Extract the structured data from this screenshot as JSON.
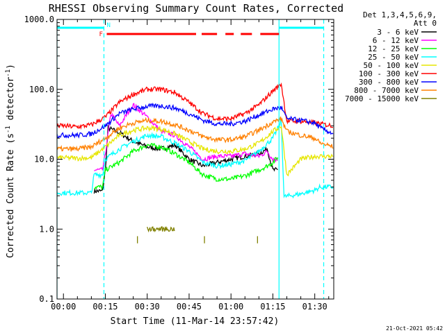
{
  "chart_data": {
    "type": "line",
    "title": "RHESSI Observing Summary Count Rates, Corrected",
    "xlabel": "Start Time (11-Mar-14 23:57:42)",
    "ylabel_main": "Corrected Count Rate (s",
    "ylabel_sup": "-1",
    "ylabel_mid": " detector",
    "ylabel_sup2": "-1",
    "ylabel_end": ")",
    "yscale": "log",
    "ylim": [
      0.1,
      1000
    ],
    "yticks": [
      {
        "value": 0.1,
        "label": "0.1"
      },
      {
        "value": 1,
        "label": "1.0"
      },
      {
        "value": 10,
        "label": "10.0"
      },
      {
        "value": 100,
        "label": "100.0"
      },
      {
        "value": 1000,
        "label": "1000.0"
      }
    ],
    "xlim_minutes": [
      -2.3,
      96.8
    ],
    "xticks": [
      {
        "value": 0,
        "label": "00:00"
      },
      {
        "value": 15,
        "label": "00:15"
      },
      {
        "value": 30,
        "label": "00:30"
      },
      {
        "value": 45,
        "label": "00:45"
      },
      {
        "value": 60,
        "label": "01:00"
      },
      {
        "value": 75,
        "label": "01:15"
      },
      {
        "value": 90,
        "label": "01:30"
      }
    ],
    "legend_header": [
      "Det 1,3,4,5,6,9,",
      "Att 0"
    ],
    "series": [
      {
        "name": "3 - 6 keV",
        "color": "#000000",
        "x": [
          -2.3,
          10.5,
          11,
          14,
          15,
          16,
          20,
          25,
          30,
          35,
          40,
          45,
          50,
          55,
          60,
          65,
          70,
          73,
          75,
          77,
          77.5
        ],
        "y": [
          null,
          null,
          3.5,
          3.5,
          7,
          28,
          24,
          18,
          15,
          14,
          16,
          10,
          8,
          9,
          10,
          11,
          12,
          14,
          7,
          7,
          null
        ]
      },
      {
        "name": "6 - 12 keV",
        "color": "#ff00ff",
        "x": [
          -2.3,
          10.5,
          11,
          14,
          15,
          17,
          20,
          25,
          30,
          35,
          40,
          45,
          50,
          55,
          60,
          65,
          70,
          73,
          75,
          77,
          77.5
        ],
        "y": [
          null,
          null,
          7,
          7,
          12,
          45,
          30,
          60,
          40,
          25,
          22,
          15,
          10,
          11,
          11,
          12,
          11,
          13,
          10,
          10,
          null
        ]
      },
      {
        "name": "12 - 25 keV",
        "color": "#00ff00",
        "x": [
          -2.3,
          10.5,
          11,
          14,
          15,
          20,
          25,
          30,
          35,
          40,
          45,
          50,
          55,
          60,
          65,
          70,
          73,
          75,
          77,
          77.5
        ],
        "y": [
          null,
          null,
          4,
          4,
          7,
          9,
          13,
          16,
          15,
          12,
          9,
          6,
          5.2,
          5.2,
          5.8,
          7,
          8,
          9,
          11,
          null
        ]
      },
      {
        "name": "25 - 50 keV",
        "color": "#00ffff",
        "x": [
          -2.3,
          0,
          5,
          10,
          11,
          14,
          15,
          20,
          25,
          30,
          35,
          40,
          45,
          50,
          55,
          60,
          65,
          70,
          75,
          78,
          79,
          85,
          90,
          92,
          96.8
        ],
        "y": [
          3.3,
          3.3,
          3.3,
          3.3,
          6,
          6,
          10,
          14,
          18,
          22,
          21,
          17,
          13,
          9,
          8,
          8.5,
          9.5,
          13,
          20,
          35,
          2.9,
          3.2,
          3.6,
          4,
          4
        ]
      },
      {
        "name": "50 - 100 keV",
        "color": "#e6e600",
        "x": [
          -2.3,
          0,
          5,
          10,
          15,
          20,
          25,
          30,
          35,
          40,
          45,
          50,
          55,
          60,
          65,
          70,
          75,
          78,
          80,
          85,
          90,
          92,
          96.8
        ],
        "y": [
          10.5,
          10.5,
          10.3,
          10.5,
          15,
          22,
          26,
          28,
          27,
          23,
          18,
          14,
          13,
          13,
          14,
          17,
          25,
          30,
          6,
          10,
          11,
          11,
          11
        ]
      },
      {
        "name": "100 - 300 keV",
        "color": "#ff0000",
        "x": [
          -2.3,
          0,
          5,
          10,
          15,
          20,
          25,
          30,
          35,
          40,
          45,
          50,
          55,
          60,
          65,
          70,
          75,
          78,
          80,
          85,
          90,
          92,
          96.8
        ],
        "y": [
          30,
          30,
          29,
          31,
          40,
          65,
          85,
          100,
          100,
          90,
          65,
          45,
          38,
          38,
          45,
          60,
          95,
          120,
          35,
          35,
          33,
          32,
          30
        ]
      },
      {
        "name": "300 - 800 keV",
        "color": "#0000ff",
        "x": [
          -2.3,
          0,
          5,
          10,
          15,
          20,
          25,
          30,
          35,
          40,
          45,
          50,
          55,
          60,
          65,
          70,
          75,
          78,
          80,
          85,
          90,
          92,
          96.8
        ],
        "y": [
          22,
          22,
          22,
          23,
          30,
          45,
          52,
          57,
          58,
          54,
          45,
          36,
          32,
          32,
          35,
          43,
          52,
          55,
          38,
          36,
          33,
          28,
          23
        ]
      },
      {
        "name": "800 - 7000 keV",
        "color": "#ff8000",
        "x": [
          -2.3,
          0,
          5,
          10,
          15,
          20,
          25,
          30,
          35,
          40,
          45,
          50,
          55,
          60,
          65,
          70,
          75,
          78,
          80,
          85,
          90,
          92,
          96.8
        ],
        "y": [
          14,
          14,
          14,
          15,
          20,
          28,
          33,
          36,
          35,
          31,
          26,
          21,
          19,
          19,
          21,
          26,
          34,
          38,
          25,
          22,
          20,
          17,
          15
        ]
      },
      {
        "name": "7000 - 15000 keV",
        "color": "#808000",
        "x": [
          -2.3,
          30,
          40,
          45,
          96.8
        ],
        "y": [
          null,
          1.0,
          1.0,
          null,
          null
        ]
      }
    ],
    "annotations": {
      "night_label": "N",
      "night_intervals": [
        [
          -2.3,
          14.5
        ],
        [
          77.2,
          93.2
        ]
      ],
      "flare_label": "F",
      "flare_segments": [
        [
          15.5,
          47.5
        ],
        [
          49.5,
          55
        ],
        [
          58,
          61
        ],
        [
          63.5,
          67.5
        ],
        [
          70.5,
          77.2
        ]
      ],
      "saa_markers": [
        26.5,
        50.5,
        69.5
      ],
      "saa_marker_value": 0.72,
      "dashed_vertical_lines": [
        14.5,
        93.2
      ],
      "solid_vertical_lines": [
        -2.3,
        77.2
      ]
    },
    "grid": false,
    "legend_placement": "right"
  },
  "footer_timestamp": "21-Oct-2021 05:42"
}
